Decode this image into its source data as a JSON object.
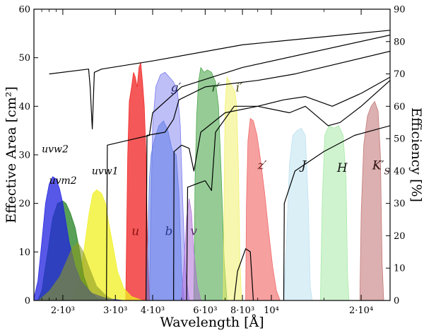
{
  "chart_data": {
    "type": "area",
    "title": "",
    "xlabel": "Wavelength [Å]",
    "ylabel_left": "Effective Area [cm²]",
    "ylabel_right": "Efficiency [%]",
    "x_scale": "log",
    "xlim": [
      1600,
      25000
    ],
    "ylim_left": [
      0,
      60
    ],
    "ylim_right": [
      0,
      90
    ],
    "x_ticks": [
      {
        "value": 2000,
        "label": "2·10³"
      },
      {
        "value": 3000,
        "label": "3·10³"
      },
      {
        "value": 4000,
        "label": "4·10³"
      },
      {
        "value": 6000,
        "label": "6·10³"
      },
      {
        "value": 8000,
        "label": "8·10³"
      },
      {
        "value": 10000,
        "label": "10⁴"
      },
      {
        "value": 20000,
        "label": "2·10⁴"
      }
    ],
    "y_ticks_left": [
      0,
      10,
      20,
      30,
      40,
      50,
      60
    ],
    "y_ticks_right": [
      0,
      10,
      20,
      30,
      40,
      50,
      60,
      70,
      80,
      90
    ],
    "series": [
      {
        "name": "uvw2",
        "color": "#2020e0",
        "label_at": [
          1700,
          30.5
        ],
        "points": [
          [
            1600,
            0.5
          ],
          [
            1650,
            4
          ],
          [
            1700,
            12
          ],
          [
            1750,
            20
          ],
          [
            1800,
            24
          ],
          [
            1850,
            25.5
          ],
          [
            1900,
            25
          ],
          [
            1950,
            23
          ],
          [
            2000,
            20
          ],
          [
            2050,
            16
          ],
          [
            2100,
            12
          ],
          [
            2200,
            7
          ],
          [
            2300,
            4
          ],
          [
            2500,
            1.5
          ],
          [
            2800,
            0.4
          ],
          [
            3200,
            0
          ]
        ]
      },
      {
        "name": "uvm2",
        "color": "#208020",
        "label_at": [
          1800,
          24
        ],
        "points": [
          [
            1650,
            0
          ],
          [
            1700,
            2
          ],
          [
            1780,
            10
          ],
          [
            1850,
            17
          ],
          [
            1920,
            20
          ],
          [
            2000,
            20.5
          ],
          [
            2050,
            20
          ],
          [
            2120,
            18
          ],
          [
            2200,
            15
          ],
          [
            2280,
            10
          ],
          [
            2350,
            5
          ],
          [
            2450,
            2
          ],
          [
            2600,
            0.5
          ],
          [
            2900,
            0
          ]
        ]
      },
      {
        "name": "uvw1",
        "color": "#f0f020",
        "label_at": [
          2500,
          26
        ]
      },
      {
        "name": "u",
        "color": "#f02020",
        "label_at": [
          3400,
          13.5
        ]
      },
      {
        "name": "b",
        "color": "#5e7ce6",
        "label_at": [
          4400,
          13.5
        ]
      },
      {
        "name": "v",
        "color": "#b070d8",
        "label_at": [
          5350,
          13.5
        ]
      },
      {
        "name": "g′",
        "color": "#7070f0",
        "label_at": [
          4600,
          43
        ]
      },
      {
        "name": "r′",
        "color": "#40a040",
        "label_at": [
          6300,
          43
        ]
      },
      {
        "name": "i′",
        "color": "#f0f060",
        "label_at": [
          7600,
          43
        ]
      },
      {
        "name": "z′",
        "color": "#f06060",
        "label_at": [
          9000,
          27
        ]
      },
      {
        "name": "J",
        "color": "#b8e0f0",
        "label_at": [
          12600,
          27
        ]
      },
      {
        "name": "H",
        "color": "#a0e8a0",
        "label_at": [
          16600,
          26.5
        ]
      },
      {
        "name": "K′S",
        "color": "#c07070",
        "label_at": [
          21800,
          27
        ]
      }
    ]
  }
}
